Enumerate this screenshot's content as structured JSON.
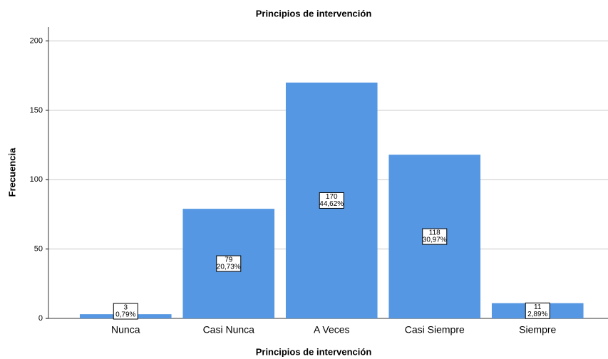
{
  "chart_data": {
    "type": "bar",
    "title": "Principios de intervención",
    "x_label": "Principios de intervención",
    "y_label": "Frecuencia",
    "categories": [
      "Nunca",
      "Casi Nunca",
      "A Veces",
      "Casi Siempre",
      "Siempre"
    ],
    "values": [
      3,
      79,
      170,
      118,
      11
    ],
    "percent_labels": [
      "0,79%",
      "20,73%",
      "44,62%",
      "30,97%",
      "2,89%"
    ],
    "color": "#5597e2",
    "ylim": [
      0,
      210
    ],
    "yticks": [
      0,
      50,
      100,
      150,
      200
    ],
    "grid": true
  }
}
